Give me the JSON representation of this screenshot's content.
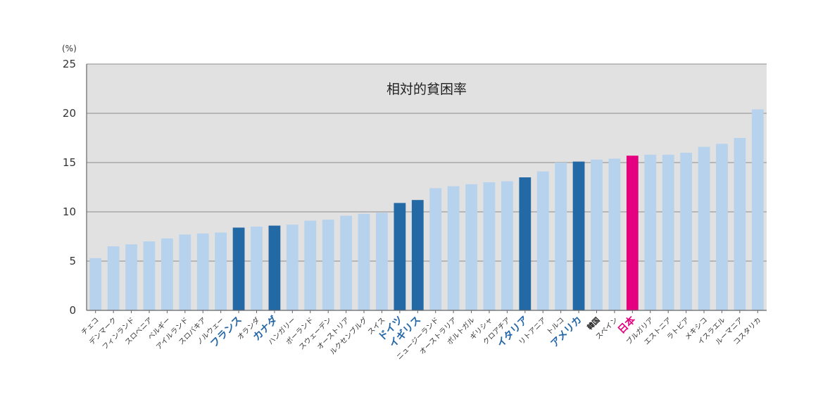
{
  "chart_data": {
    "type": "bar",
    "title": "相対的貧困率",
    "unit_label": "(%)",
    "ylim": [
      0,
      25
    ],
    "yticks": [
      0,
      5,
      10,
      15,
      20,
      25
    ],
    "grid": true,
    "plot_background": "#e1e1e1",
    "colors": {
      "default": "#b7d2ec",
      "highlight": "#2369a5",
      "japan": "#e4007f",
      "highlight_label": "#2266a8"
    },
    "categories": [
      "チェコ",
      "デンマーク",
      "フィンランド",
      "スロベニア",
      "ベルギー",
      "アイルランド",
      "スロバキア",
      "ノルウェー",
      "フランス",
      "オランダ",
      "カナダ",
      "ハンガリー",
      "ポーランド",
      "スウェーデン",
      "オーストリア",
      "ルクセンブルグ",
      "スイス",
      "ドイツ",
      "イギリス",
      "ニュージーランド",
      "オーストラリア",
      "ポルトガル",
      "ギリシャ",
      "クロアチア",
      "イタリア",
      "リトアニア",
      "トルコ",
      "アメリカ",
      "韓国",
      "スペイン",
      "日本",
      "ブルガリア",
      "エストニア",
      "ラトビア",
      "メキシコ",
      "イスラエル",
      "ルーマニア",
      "コスタリカ"
    ],
    "values": [
      5.3,
      6.5,
      6.7,
      7.0,
      7.3,
      7.7,
      7.8,
      7.9,
      8.4,
      8.5,
      8.6,
      8.7,
      9.1,
      9.2,
      9.6,
      9.8,
      9.9,
      10.9,
      11.2,
      12.4,
      12.6,
      12.8,
      13.0,
      13.1,
      13.5,
      14.1,
      15.0,
      15.1,
      15.3,
      15.4,
      15.7,
      15.8,
      15.8,
      16.0,
      16.6,
      16.9,
      17.5,
      20.4
    ],
    "highlight": [
      "フランス",
      "カナダ",
      "ドイツ",
      "イギリス",
      "イタリア",
      "アメリカ"
    ],
    "japan": "日本",
    "bold_labels": [
      "韓国"
    ]
  }
}
